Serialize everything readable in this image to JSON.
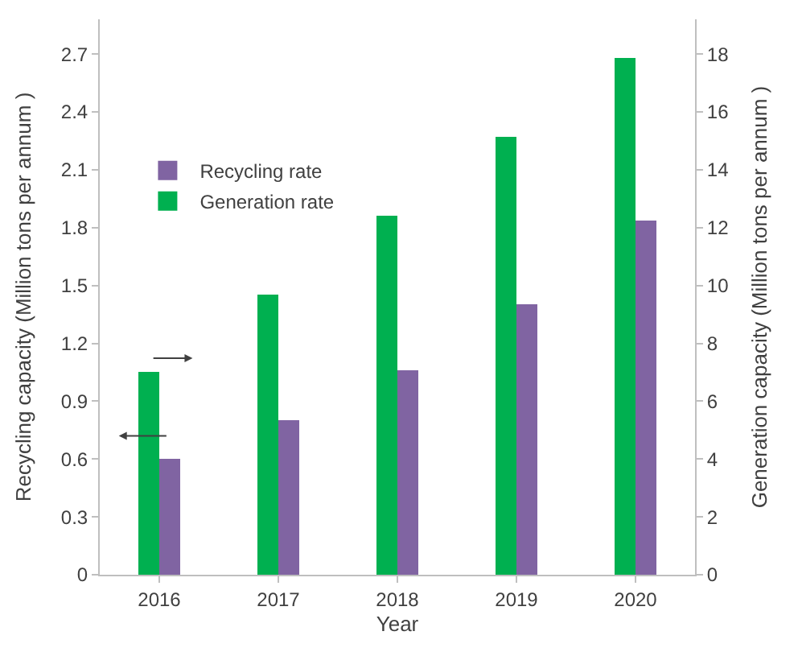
{
  "chart_data": {
    "type": "bar",
    "xlabel": "Year",
    "ylabel": "Recycling capacity (Million tons per annum )",
    "y2label": "Generation capacity (Million tons per annum )",
    "categories": [
      "2016",
      "2017",
      "2018",
      "2019",
      "2020"
    ],
    "series": [
      {
        "name": "Generation rate",
        "color": "#00b050",
        "axis": "y2",
        "values": [
          7.0,
          9.7,
          12.4,
          15.15,
          17.84
        ]
      },
      {
        "name": "Recycling rate",
        "color": "#8064a2",
        "values": [
          0.6,
          0.8,
          1.06,
          1.4,
          1.84
        ]
      }
    ],
    "ylim": [
      0,
      2.88
    ],
    "yticks": [
      0,
      0.3,
      0.6,
      0.9,
      1.2,
      1.5,
      1.8,
      2.1,
      2.4,
      2.7
    ],
    "y2lim": [
      0,
      19.2
    ],
    "y2ticks": [
      0,
      2,
      4,
      6,
      8,
      10,
      12,
      14,
      16,
      18
    ],
    "legend": "top left"
  }
}
